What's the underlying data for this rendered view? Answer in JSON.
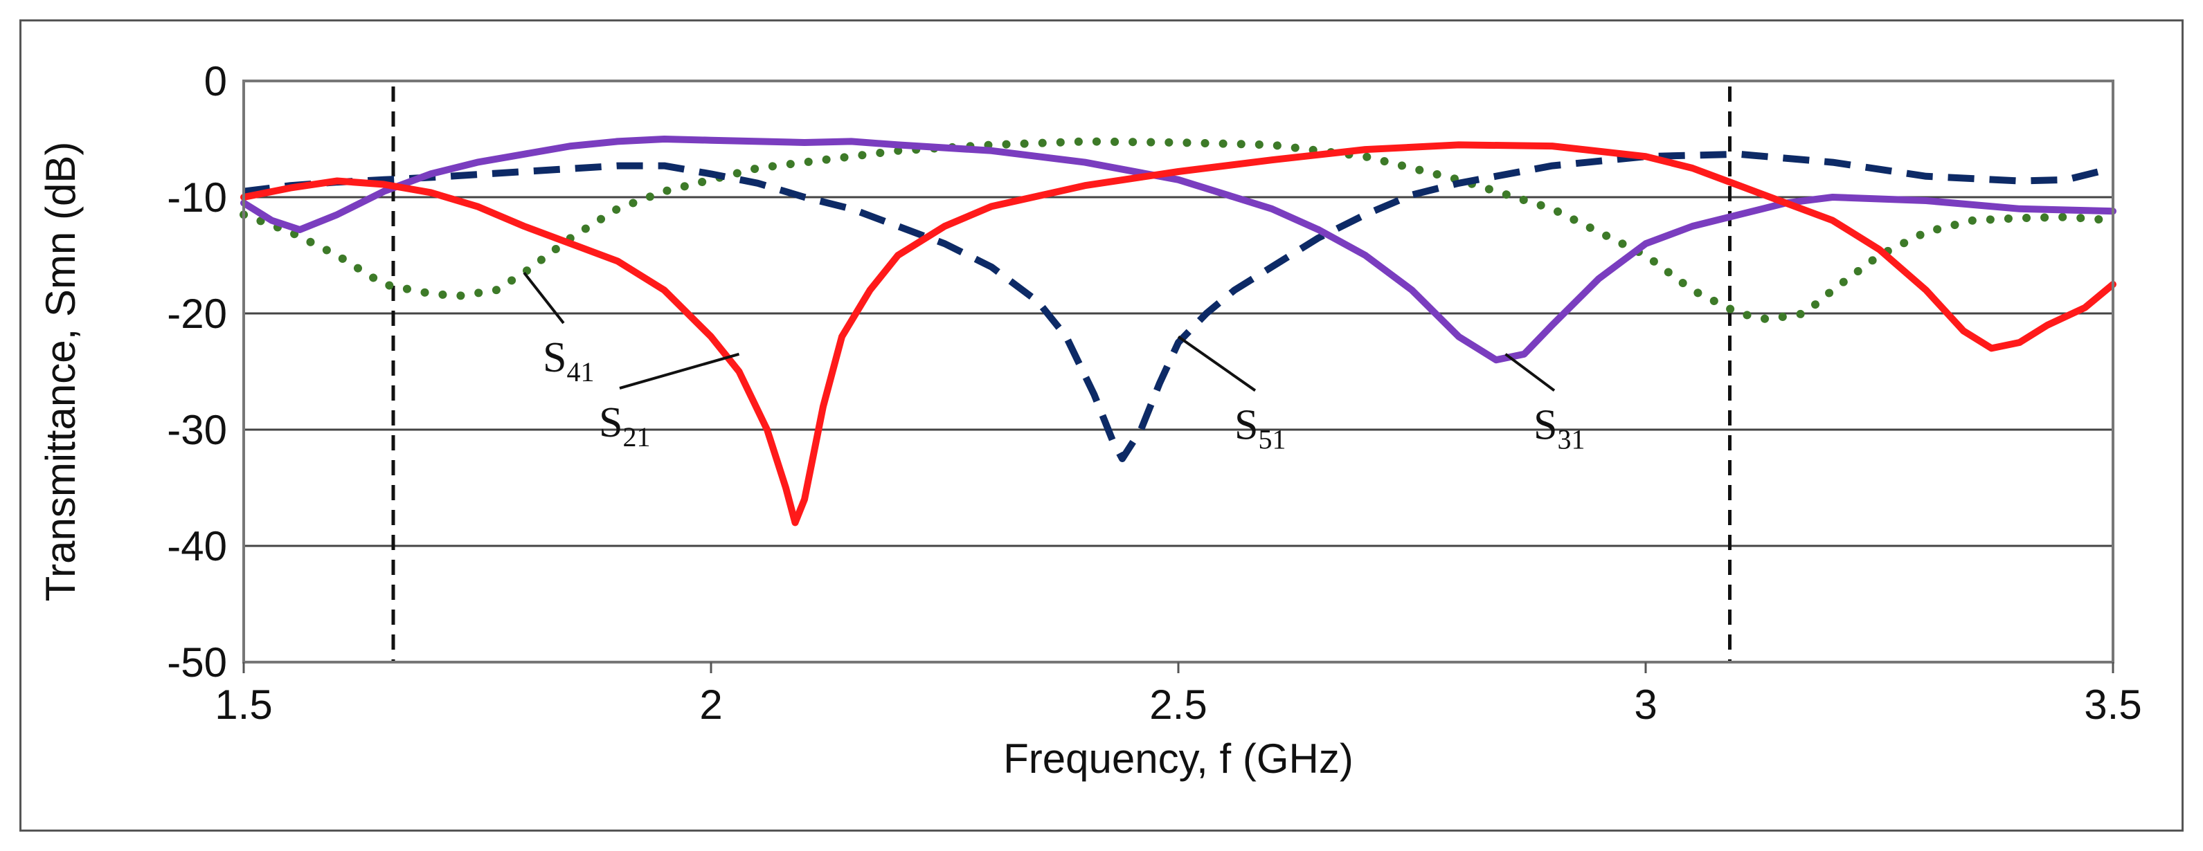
{
  "chart_data": {
    "type": "line",
    "title": "",
    "xlabel": "Frequency, f (GHz)",
    "ylabel": "Transmittance, Smn (dB)",
    "xlim": [
      1.5,
      3.5
    ],
    "ylim": [
      -50,
      0
    ],
    "x_ticks": [
      "1.5",
      "2",
      "2.5",
      "3",
      "3.5"
    ],
    "y_ticks": [
      "0",
      "-10",
      "-20",
      "-30",
      "-40",
      "-50"
    ],
    "grid": "horizontal",
    "markers": [
      1.66,
      3.09
    ],
    "series": [
      {
        "name": "S21",
        "label": "S",
        "subscript": "21",
        "color": "#ff1a1a",
        "style": "solid",
        "points": [
          [
            1.5,
            -10
          ],
          [
            1.55,
            -9.2
          ],
          [
            1.6,
            -8.6
          ],
          [
            1.65,
            -8.9
          ],
          [
            1.7,
            -9.6
          ],
          [
            1.75,
            -10.8
          ],
          [
            1.8,
            -12.5
          ],
          [
            1.85,
            -14
          ],
          [
            1.9,
            -15.5
          ],
          [
            1.95,
            -18
          ],
          [
            2.0,
            -22
          ],
          [
            2.03,
            -25
          ],
          [
            2.06,
            -30
          ],
          [
            2.08,
            -35
          ],
          [
            2.09,
            -38
          ],
          [
            2.1,
            -36
          ],
          [
            2.12,
            -28
          ],
          [
            2.14,
            -22
          ],
          [
            2.17,
            -18
          ],
          [
            2.2,
            -15
          ],
          [
            2.25,
            -12.5
          ],
          [
            2.3,
            -10.8
          ],
          [
            2.4,
            -9
          ],
          [
            2.5,
            -7.8
          ],
          [
            2.6,
            -6.8
          ],
          [
            2.7,
            -5.9
          ],
          [
            2.8,
            -5.5
          ],
          [
            2.9,
            -5.6
          ],
          [
            3.0,
            -6.5
          ],
          [
            3.05,
            -7.5
          ],
          [
            3.1,
            -9
          ],
          [
            3.15,
            -10.5
          ],
          [
            3.2,
            -12
          ],
          [
            3.25,
            -14.5
          ],
          [
            3.3,
            -18
          ],
          [
            3.34,
            -21.5
          ],
          [
            3.37,
            -23
          ],
          [
            3.4,
            -22.5
          ],
          [
            3.43,
            -21
          ],
          [
            3.47,
            -19.5
          ],
          [
            3.5,
            -17.5
          ]
        ]
      },
      {
        "name": "S31",
        "label": "S",
        "subscript": "31",
        "color": "#7a3dbf",
        "style": "solid",
        "points": [
          [
            1.5,
            -10.5
          ],
          [
            1.53,
            -12
          ],
          [
            1.56,
            -12.8
          ],
          [
            1.6,
            -11.5
          ],
          [
            1.65,
            -9.5
          ],
          [
            1.7,
            -8
          ],
          [
            1.75,
            -7
          ],
          [
            1.8,
            -6.3
          ],
          [
            1.85,
            -5.6
          ],
          [
            1.9,
            -5.2
          ],
          [
            1.95,
            -5
          ],
          [
            2.0,
            -5.1
          ],
          [
            2.1,
            -5.3
          ],
          [
            2.15,
            -5.2
          ],
          [
            2.2,
            -5.5
          ],
          [
            2.3,
            -6
          ],
          [
            2.4,
            -7
          ],
          [
            2.5,
            -8.5
          ],
          [
            2.6,
            -11
          ],
          [
            2.65,
            -12.8
          ],
          [
            2.7,
            -15
          ],
          [
            2.75,
            -18
          ],
          [
            2.8,
            -22
          ],
          [
            2.84,
            -24
          ],
          [
            2.87,
            -23.5
          ],
          [
            2.9,
            -21
          ],
          [
            2.95,
            -17
          ],
          [
            3.0,
            -14
          ],
          [
            3.05,
            -12.5
          ],
          [
            3.1,
            -11.5
          ],
          [
            3.15,
            -10.5
          ],
          [
            3.2,
            -10
          ],
          [
            3.3,
            -10.3
          ],
          [
            3.4,
            -11
          ],
          [
            3.5,
            -11.2
          ]
        ]
      },
      {
        "name": "S41",
        "label": "S",
        "subscript": "41",
        "color": "#3d7a28",
        "style": "dotted",
        "points": [
          [
            1.5,
            -11.5
          ],
          [
            1.55,
            -13
          ],
          [
            1.6,
            -15
          ],
          [
            1.65,
            -17.5
          ],
          [
            1.7,
            -18.3
          ],
          [
            1.73,
            -18.5
          ],
          [
            1.77,
            -18
          ],
          [
            1.8,
            -16.5
          ],
          [
            1.85,
            -13.5
          ],
          [
            1.9,
            -11
          ],
          [
            1.95,
            -9.5
          ],
          [
            2.0,
            -8.5
          ],
          [
            2.05,
            -7.5
          ],
          [
            2.1,
            -7
          ],
          [
            2.2,
            -6
          ],
          [
            2.3,
            -5.5
          ],
          [
            2.4,
            -5.2
          ],
          [
            2.5,
            -5.3
          ],
          [
            2.6,
            -5.5
          ],
          [
            2.7,
            -6.5
          ],
          [
            2.8,
            -8.5
          ],
          [
            2.9,
            -11
          ],
          [
            2.95,
            -13
          ],
          [
            3.0,
            -15
          ],
          [
            3.05,
            -18
          ],
          [
            3.1,
            -20
          ],
          [
            3.13,
            -20.5
          ],
          [
            3.17,
            -20
          ],
          [
            3.2,
            -18
          ],
          [
            3.25,
            -15
          ],
          [
            3.3,
            -13
          ],
          [
            3.35,
            -12
          ],
          [
            3.4,
            -11.8
          ],
          [
            3.45,
            -11.7
          ],
          [
            3.5,
            -12
          ]
        ]
      },
      {
        "name": "S51",
        "label": "S",
        "subscript": "51",
        "color": "#0d2a66",
        "style": "dashed",
        "points": [
          [
            1.5,
            -9.5
          ],
          [
            1.55,
            -9
          ],
          [
            1.6,
            -8.7
          ],
          [
            1.65,
            -8.5
          ],
          [
            1.7,
            -8.3
          ],
          [
            1.8,
            -7.8
          ],
          [
            1.9,
            -7.3
          ],
          [
            1.95,
            -7.3
          ],
          [
            2.0,
            -8
          ],
          [
            2.05,
            -8.8
          ],
          [
            2.1,
            -10
          ],
          [
            2.15,
            -11
          ],
          [
            2.2,
            -12.5
          ],
          [
            2.25,
            -14
          ],
          [
            2.3,
            -16
          ],
          [
            2.35,
            -19
          ],
          [
            2.38,
            -22
          ],
          [
            2.41,
            -27
          ],
          [
            2.43,
            -31
          ],
          [
            2.44,
            -32.5
          ],
          [
            2.46,
            -30
          ],
          [
            2.48,
            -26
          ],
          [
            2.5,
            -22.5
          ],
          [
            2.53,
            -20
          ],
          [
            2.56,
            -18
          ],
          [
            2.6,
            -16
          ],
          [
            2.65,
            -13.5
          ],
          [
            2.7,
            -11.5
          ],
          [
            2.75,
            -9.8
          ],
          [
            2.8,
            -8.8
          ],
          [
            2.9,
            -7.3
          ],
          [
            3.0,
            -6.5
          ],
          [
            3.1,
            -6.3
          ],
          [
            3.2,
            -7
          ],
          [
            3.3,
            -8.2
          ],
          [
            3.4,
            -8.6
          ],
          [
            3.45,
            -8.5
          ],
          [
            3.5,
            -7.5
          ]
        ]
      }
    ],
    "annotations": [
      {
        "series": "S41",
        "label": "S",
        "subscript": "41",
        "at": [
          1.8,
          -16.5
        ],
        "text_pos": [
          1.82,
          -25
        ]
      },
      {
        "series": "S21",
        "label": "S",
        "subscript": "21",
        "at": [
          2.03,
          -23.5
        ],
        "text_pos": [
          1.88,
          -30.6
        ]
      },
      {
        "series": "S51",
        "label": "S",
        "subscript": "51",
        "at": [
          2.5,
          -22
        ],
        "text_pos": [
          2.56,
          -30.8
        ]
      },
      {
        "series": "S31",
        "label": "S",
        "subscript": "31",
        "at": [
          2.85,
          -23.5
        ],
        "text_pos": [
          2.88,
          -30.8
        ]
      }
    ]
  }
}
